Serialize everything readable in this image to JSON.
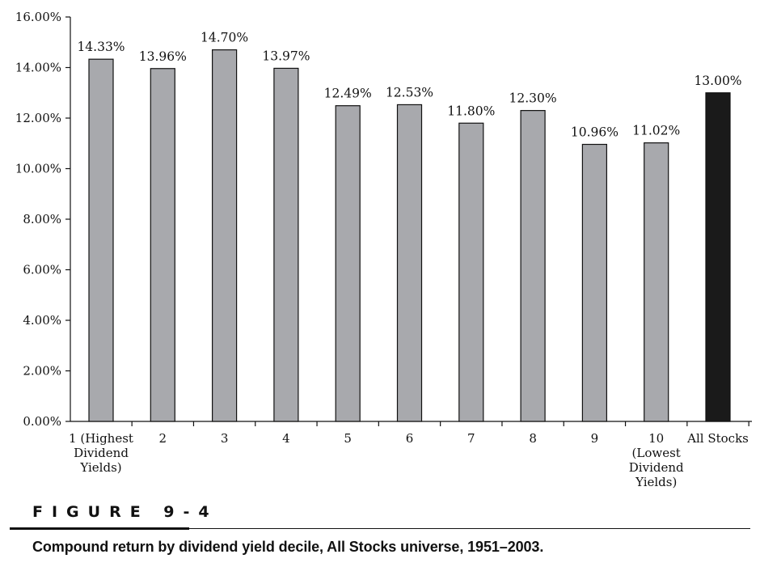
{
  "chart_data": {
    "type": "bar",
    "title": "",
    "xlabel": "",
    "ylabel": "",
    "ylim": [
      0,
      16
    ],
    "y_ticks": [
      "0.00%",
      "2.00%",
      "4.00%",
      "6.00%",
      "8.00%",
      "10.00%",
      "12.00%",
      "14.00%",
      "16.00%"
    ],
    "categories": [
      [
        "1 (Highest",
        "Dividend",
        "Yields)"
      ],
      [
        "2"
      ],
      [
        "3"
      ],
      [
        "4"
      ],
      [
        "5"
      ],
      [
        "6"
      ],
      [
        "7"
      ],
      [
        "8"
      ],
      [
        "9"
      ],
      [
        "10",
        "(Lowest",
        "Dividend",
        "Yields)"
      ],
      [
        "All Stocks"
      ]
    ],
    "values": [
      14.33,
      13.96,
      14.7,
      13.97,
      12.49,
      12.53,
      11.8,
      12.3,
      10.96,
      11.02,
      13.0
    ],
    "value_labels": [
      "14.33%",
      "13.96%",
      "14.70%",
      "13.97%",
      "12.49%",
      "12.53%",
      "11.80%",
      "12.30%",
      "10.96%",
      "11.02%",
      "13.00%"
    ],
    "bar_colors": [
      "#a8a9ad",
      "#a8a9ad",
      "#a8a9ad",
      "#a8a9ad",
      "#a8a9ad",
      "#a8a9ad",
      "#a8a9ad",
      "#a8a9ad",
      "#a8a9ad",
      "#a8a9ad",
      "#1a1a1a"
    ],
    "grid": false,
    "legend": "none"
  },
  "figure": {
    "label": "FIGURE 9-4",
    "caption": "Compound return by dividend yield decile, All Stocks universe, 1951–2003."
  }
}
